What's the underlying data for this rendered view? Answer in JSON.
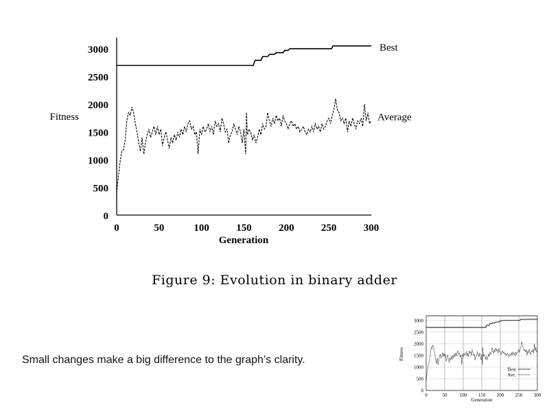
{
  "chart_data": [
    {
      "type": "line",
      "title": "",
      "xlabel": "Generation",
      "ylabel": "Fitness",
      "xlim": [
        0,
        300
      ],
      "ylim": [
        0,
        3200
      ],
      "xticks": [
        "0",
        "50",
        "100",
        "150",
        "200",
        "250",
        "300"
      ],
      "yticks": [
        "0",
        "500",
        "1000",
        "1500",
        "2000",
        "2500",
        "3000"
      ],
      "grid": false,
      "legend": "inline labels at right end of lines",
      "series": [
        {
          "name": "Best",
          "style": "solid",
          "points": [
            [
              0,
              2700
            ],
            [
              150,
              2700
            ],
            [
              161,
              2700
            ],
            [
              163,
              2790
            ],
            [
              170,
              2790
            ],
            [
              172,
              2860
            ],
            [
              178,
              2860
            ],
            [
              180,
              2900
            ],
            [
              186,
              2900
            ],
            [
              188,
              2930
            ],
            [
              196,
              2930
            ],
            [
              198,
              2970
            ],
            [
              202,
              2970
            ],
            [
              204,
              3000
            ],
            [
              253,
              3000
            ],
            [
              255,
              3050
            ],
            [
              300,
              3050
            ]
          ]
        },
        {
          "name": "Average",
          "style": "dashed",
          "points": [
            [
              0,
              400
            ],
            [
              2,
              700
            ],
            [
              4,
              950
            ],
            [
              6,
              1150
            ],
            [
              8,
              1180
            ],
            [
              10,
              1350
            ],
            [
              12,
              1700
            ],
            [
              14,
              1850
            ],
            [
              16,
              1800
            ],
            [
              18,
              1950
            ],
            [
              20,
              1850
            ],
            [
              22,
              1650
            ],
            [
              24,
              1500
            ],
            [
              26,
              1300
            ],
            [
              28,
              1150
            ],
            [
              30,
              1400
            ],
            [
              32,
              1100
            ],
            [
              34,
              1300
            ],
            [
              36,
              1450
            ],
            [
              38,
              1550
            ],
            [
              40,
              1400
            ],
            [
              42,
              1500
            ],
            [
              44,
              1600
            ],
            [
              46,
              1450
            ],
            [
              48,
              1600
            ],
            [
              50,
              1450
            ],
            [
              52,
              1550
            ],
            [
              54,
              1250
            ],
            [
              56,
              1400
            ],
            [
              58,
              1500
            ],
            [
              60,
              1350
            ],
            [
              62,
              1200
            ],
            [
              64,
              1400
            ],
            [
              66,
              1300
            ],
            [
              68,
              1450
            ],
            [
              70,
              1350
            ],
            [
              72,
              1500
            ],
            [
              74,
              1400
            ],
            [
              76,
              1550
            ],
            [
              78,
              1450
            ],
            [
              80,
              1600
            ],
            [
              82,
              1500
            ],
            [
              84,
              1650
            ],
            [
              86,
              1700
            ],
            [
              88,
              1550
            ],
            [
              90,
              1600
            ],
            [
              92,
              1450
            ],
            [
              94,
              1500
            ],
            [
              96,
              1100
            ],
            [
              98,
              1550
            ],
            [
              100,
              1450
            ],
            [
              102,
              1600
            ],
            [
              104,
              1500
            ],
            [
              106,
              1550
            ],
            [
              108,
              1650
            ],
            [
              110,
              1500
            ],
            [
              112,
              1600
            ],
            [
              114,
              1450
            ],
            [
              116,
              1700
            ],
            [
              118,
              1600
            ],
            [
              120,
              1650
            ],
            [
              122,
              1500
            ],
            [
              124,
              1750
            ],
            [
              126,
              1650
            ],
            [
              128,
              1500
            ],
            [
              130,
              1550
            ],
            [
              132,
              1300
            ],
            [
              134,
              1450
            ],
            [
              136,
              1500
            ],
            [
              138,
              1650
            ],
            [
              140,
              1550
            ],
            [
              142,
              1450
            ],
            [
              144,
              1600
            ],
            [
              146,
              1500
            ],
            [
              148,
              1300
            ],
            [
              150,
              1550
            ],
            [
              152,
              1100
            ],
            [
              153,
              1850
            ],
            [
              154,
              1450
            ],
            [
              156,
              1550
            ],
            [
              158,
              1500
            ],
            [
              160,
              1350
            ],
            [
              162,
              1450
            ],
            [
              164,
              1300
            ],
            [
              166,
              1400
            ],
            [
              168,
              1550
            ],
            [
              170,
              1450
            ],
            [
              172,
              1650
            ],
            [
              174,
              1550
            ],
            [
              176,
              1600
            ],
            [
              178,
              1850
            ],
            [
              180,
              1700
            ],
            [
              182,
              1600
            ],
            [
              184,
              1750
            ],
            [
              186,
              1650
            ],
            [
              188,
              1800
            ],
            [
              190,
              1700
            ],
            [
              192,
              1750
            ],
            [
              194,
              1600
            ],
            [
              196,
              1800
            ],
            [
              198,
              1700
            ],
            [
              200,
              1650
            ],
            [
              202,
              1550
            ],
            [
              204,
              1650
            ],
            [
              206,
              1700
            ],
            [
              208,
              1600
            ],
            [
              210,
              1650
            ],
            [
              212,
              1550
            ],
            [
              214,
              1600
            ],
            [
              216,
              1500
            ],
            [
              218,
              1550
            ],
            [
              220,
              1600
            ],
            [
              222,
              1500
            ],
            [
              224,
              1450
            ],
            [
              226,
              1550
            ],
            [
              228,
              1500
            ],
            [
              230,
              1600
            ],
            [
              232,
              1500
            ],
            [
              234,
              1650
            ],
            [
              236,
              1550
            ],
            [
              238,
              1600
            ],
            [
              240,
              1500
            ],
            [
              242,
              1650
            ],
            [
              244,
              1550
            ],
            [
              246,
              1600
            ],
            [
              248,
              1700
            ],
            [
              250,
              1750
            ],
            [
              252,
              1650
            ],
            [
              254,
              1800
            ],
            [
              256,
              1900
            ],
            [
              258,
              2100
            ],
            [
              260,
              1900
            ],
            [
              262,
              1850
            ],
            [
              264,
              1700
            ],
            [
              266,
              1750
            ],
            [
              268,
              1650
            ],
            [
              270,
              1750
            ],
            [
              272,
              1500
            ],
            [
              274,
              1700
            ],
            [
              276,
              1600
            ],
            [
              278,
              1750
            ],
            [
              280,
              1650
            ],
            [
              282,
              1550
            ],
            [
              284,
              1700
            ],
            [
              286,
              1650
            ],
            [
              288,
              1750
            ],
            [
              290,
              1600
            ],
            [
              292,
              2000
            ],
            [
              294,
              1700
            ],
            [
              296,
              1850
            ],
            [
              298,
              1650
            ],
            [
              300,
              1700
            ]
          ]
        }
      ]
    },
    {
      "type": "line",
      "title": "",
      "xlabel": "Generation",
      "ylabel": "Fitness",
      "xlim": [
        0,
        300
      ],
      "ylim": [
        0,
        3200
      ],
      "xticks": [
        "0",
        "50",
        "100",
        "150",
        "200",
        "250",
        "300"
      ],
      "yticks": [
        "0",
        "500",
        "1000",
        "1500",
        "2000",
        "2500",
        "3000"
      ],
      "grid": true,
      "legend": "bottom-right",
      "series": [
        {
          "name": "Best",
          "style": "solid"
        },
        {
          "name": "Ave.",
          "style": "dotted"
        }
      ]
    }
  ],
  "caption": "Figure 9:  Evolution in binary adder",
  "note": "Small changes make a big difference to the graph’s clarity."
}
